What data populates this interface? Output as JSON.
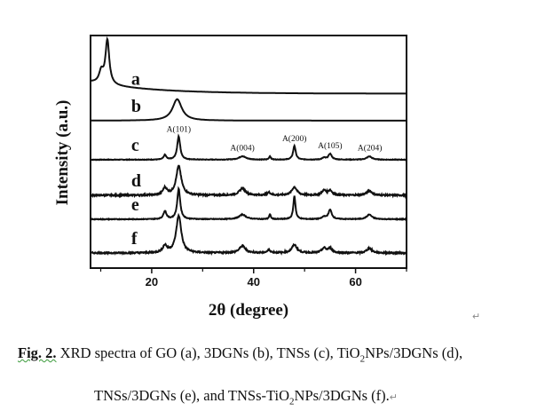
{
  "chart_data": {
    "type": "line",
    "title": "",
    "xlabel": "2θ (degree)",
    "ylabel": "Intensity (a.u.)",
    "xlim": [
      8,
      70
    ],
    "ylim": [
      0,
      100
    ],
    "x_ticks": [
      20,
      40,
      60
    ],
    "x_minor_ticks": [
      10,
      30,
      50,
      70
    ],
    "grid": false,
    "series": [
      {
        "name": "a",
        "label_x": 16,
        "baseline": 75,
        "decay": 5,
        "noise": 0,
        "peaks": [
          [
            10.1,
            5,
            0.5
          ],
          [
            11.3,
            19,
            0.45
          ]
        ]
      },
      {
        "name": "b",
        "label_x": 16,
        "baseline": 63.4,
        "decay": 0,
        "noise": 0,
        "peaks": [
          [
            25.0,
            9.2,
            1.1
          ]
        ]
      },
      {
        "name": "c",
        "label_x": 16,
        "baseline": 46.6,
        "decay": 0,
        "noise": 0.12,
        "peaks": [
          [
            22.6,
            2,
            0.3
          ],
          [
            25.3,
            10,
            0.35
          ],
          [
            37.8,
            1.5,
            0.8
          ],
          [
            43.2,
            1.5,
            0.2
          ],
          [
            48.0,
            6,
            0.3
          ],
          [
            53.8,
            0.8,
            0.4
          ],
          [
            55.0,
            2.5,
            0.4
          ],
          [
            62.7,
            1.4,
            0.6
          ]
        ]
      },
      {
        "name": "d",
        "label_x": 16,
        "baseline": 31.3,
        "decay": 0,
        "noise": 0.3,
        "peaks": [
          [
            22.6,
            3,
            0.5
          ],
          [
            25.3,
            12.5,
            0.6
          ],
          [
            37.8,
            3,
            0.7
          ],
          [
            43.0,
            1.2,
            0.4
          ],
          [
            48.0,
            3.5,
            0.6
          ],
          [
            53.8,
            2,
            0.5
          ],
          [
            55.0,
            2,
            0.5
          ],
          [
            62.7,
            2,
            0.6
          ]
        ]
      },
      {
        "name": "e",
        "label_x": 16,
        "baseline": 21,
        "decay": 0,
        "noise": 0.15,
        "peaks": [
          [
            22.6,
            3.5,
            0.35
          ],
          [
            25.3,
            13,
            0.35
          ],
          [
            37.8,
            2,
            0.8
          ],
          [
            43.2,
            2,
            0.2
          ],
          [
            48.0,
            10,
            0.25
          ],
          [
            53.8,
            1,
            0.4
          ],
          [
            55.0,
            4,
            0.4
          ],
          [
            62.7,
            2,
            0.6
          ]
        ]
      },
      {
        "name": "f",
        "label_x": 16,
        "baseline": 6.5,
        "decay": 0,
        "noise": 0.3,
        "peaks": [
          [
            22.6,
            3,
            0.5
          ],
          [
            25.3,
            16,
            0.6
          ],
          [
            37.8,
            3,
            0.7
          ],
          [
            43.0,
            1.2,
            0.4
          ],
          [
            48.0,
            3.5,
            0.6
          ],
          [
            53.8,
            2,
            0.5
          ],
          [
            55.0,
            2,
            0.5
          ],
          [
            62.7,
            2,
            0.6
          ]
        ]
      }
    ],
    "annotations": [
      {
        "text": "A(101)",
        "x": 25.3,
        "y": 58.5
      },
      {
        "text": "A(004)",
        "x": 37.8,
        "y": 50.5
      },
      {
        "text": "A(200)",
        "x": 48.0,
        "y": 54.5
      },
      {
        "text": "A(105)",
        "x": 55.0,
        "y": 51.5
      },
      {
        "text": "A(204)",
        "x": 62.8,
        "y": 50.5
      }
    ]
  },
  "caption": {
    "fig_label": "Fig. 2.",
    "line1": " XRD spectra of GO (a), 3DGNs (b), TNSs (c), TiO",
    "line1_sub": "2",
    "line1_rest": "NPs/3DGNs (d),",
    "line2": "TNSs/3DGNs (e), and TNSs-TiO",
    "line2_sub": "2",
    "line2_rest": "NPs/3DGNs (f).",
    "return_mark": "↵"
  }
}
